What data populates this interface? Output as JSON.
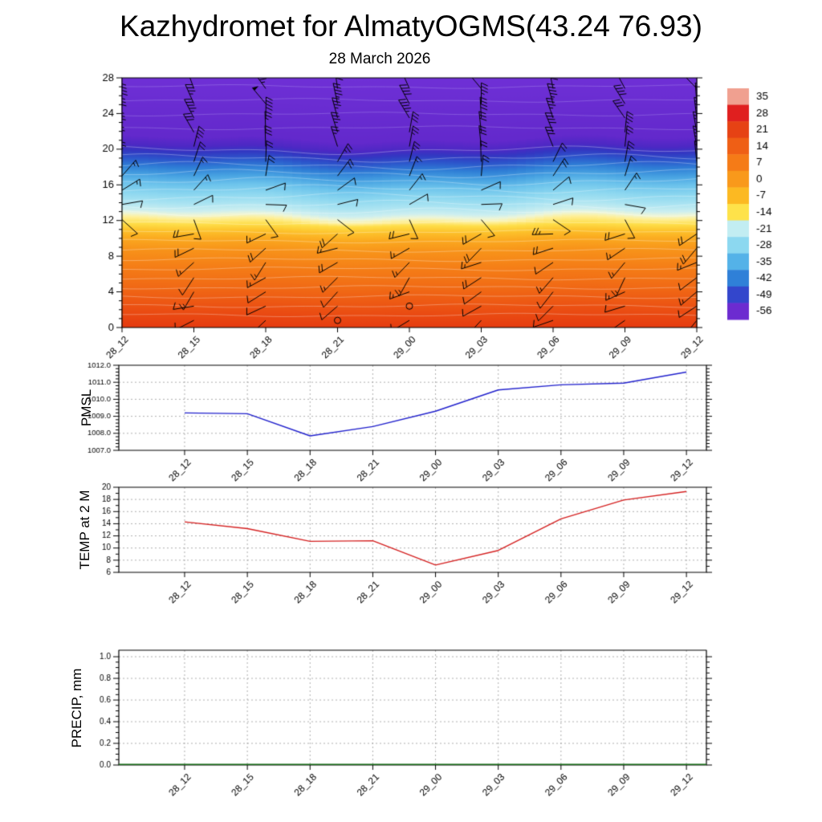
{
  "title": "Kazhydromet for AlmatyOGMS(43.24 76.93)",
  "subtitle": "28 March 2026",
  "station": {
    "name": "AlmatyOGMS",
    "lat": "43.24",
    "lon": "76.93"
  },
  "time_labels": [
    "28_12",
    "28_15",
    "28_18",
    "28_21",
    "29_00",
    "29_03",
    "29_06",
    "29_09",
    "29_12"
  ],
  "chart_data": [
    {
      "id": "temperature-height-cross-section",
      "type": "heatmap",
      "x_labels": [
        "28_12",
        "28_15",
        "28_18",
        "28_21",
        "29_00",
        "29_03",
        "29_06",
        "29_09",
        "29_12"
      ],
      "ylim": [
        0,
        28
      ],
      "ytick_labels": [
        "0",
        "4",
        "8",
        "12",
        "16",
        "20",
        "24",
        "28"
      ],
      "minor_step": 1,
      "colorbar_levels": [
        35,
        28,
        21,
        14,
        7,
        0,
        -7,
        -14,
        -21,
        -28,
        -35,
        -42,
        -49,
        -56
      ],
      "colorbar_colors": [
        "#f0a090",
        "#e01f1f",
        "#e64214",
        "#ef5f15",
        "#f57b17",
        "#f9991b",
        "#fcb922",
        "#fee24a",
        "#c2edf2",
        "#8cd8f0",
        "#54b2e8",
        "#2f80d8",
        "#3346cc",
        "#6c2bd0"
      ],
      "gradient_stops": [
        [
          0.0,
          "#e63c10"
        ],
        [
          0.08,
          "#ec5213"
        ],
        [
          0.16,
          "#f16a15"
        ],
        [
          0.24,
          "#f57e17"
        ],
        [
          0.31,
          "#f8941a"
        ],
        [
          0.355,
          "#fbab20"
        ],
        [
          0.385,
          "#fdc32c"
        ],
        [
          0.41,
          "#fede48"
        ],
        [
          0.43,
          "#fef09a"
        ],
        [
          0.445,
          "#eef6d8"
        ],
        [
          0.46,
          "#cdeff0"
        ],
        [
          0.49,
          "#abe4f2"
        ],
        [
          0.525,
          "#8ed8f0"
        ],
        [
          0.565,
          "#6cc3ec"
        ],
        [
          0.6,
          "#48a3e2"
        ],
        [
          0.635,
          "#2f7ed6"
        ],
        [
          0.665,
          "#2c57cc"
        ],
        [
          0.695,
          "#3337c2"
        ],
        [
          0.72,
          "#4d28c4"
        ],
        [
          0.755,
          "#6329cc"
        ],
        [
          1.0,
          "#6f30d6"
        ]
      ],
      "contour_line_color": "rgba(255,255,255,0.45)",
      "wind_barbs": {
        "levels": [
          0.8,
          2.4,
          4.0,
          5.6,
          7.3,
          8.9,
          10.5,
          12.1,
          13.8,
          15.4,
          17.0,
          18.6,
          20.3,
          21.9,
          23.5,
          25.1,
          26.8
        ],
        "dirs_deg_from": [
          235,
          245,
          230,
          225,
          232,
          240,
          248,
          140,
          80,
          50,
          25,
          10,
          358,
          350,
          345,
          340,
          336
        ],
        "speeds_kt": [
          8,
          10,
          12,
          15,
          15,
          18,
          20,
          10,
          10,
          12,
          18,
          22,
          28,
          32,
          38,
          42,
          48
        ],
        "calm_points": [
          [
            3,
            0
          ],
          [
            4,
            1
          ]
        ]
      }
    },
    {
      "id": "pmsl",
      "type": "line",
      "ylabel": "PMSL",
      "x_labels": [
        "28_12",
        "28_15",
        "28_18",
        "28_21",
        "29_00",
        "29_03",
        "29_06",
        "29_09",
        "29_12"
      ],
      "values": [
        1009.2,
        1009.15,
        1007.85,
        1008.4,
        1009.3,
        1010.55,
        1010.85,
        1010.95,
        1011.6
      ],
      "ylim": [
        1007.0,
        1012.0
      ],
      "ytick_labels": [
        "1007.0",
        "1008.0",
        "1009.0",
        "1010.0",
        "1011.0",
        "1012.0"
      ],
      "minor_step": 0.2,
      "line_color": "#2020cc"
    },
    {
      "id": "temp-at-2m",
      "type": "line",
      "ylabel": "TEMP at 2 M",
      "x_labels": [
        "28_12",
        "28_15",
        "28_18",
        "28_21",
        "29_00",
        "29_03",
        "29_06",
        "29_09",
        "29_12"
      ],
      "values": [
        14.3,
        13.2,
        11.1,
        11.2,
        7.2,
        9.6,
        14.8,
        17.9,
        19.3
      ],
      "ylim": [
        6,
        20
      ],
      "ytick_labels": [
        "6",
        "8",
        "10",
        "12",
        "14",
        "16",
        "18",
        "20"
      ],
      "minor_step": 1,
      "line_color": "#d42020"
    },
    {
      "id": "precip",
      "type": "line",
      "ylabel": "PRECIP, mm",
      "x_labels": [
        "28_12",
        "28_15",
        "28_18",
        "28_21",
        "29_00",
        "29_03",
        "29_06",
        "29_09",
        "29_12"
      ],
      "values": [
        0,
        0,
        0,
        0,
        0,
        0,
        0,
        0,
        0
      ],
      "ylim": [
        0.0,
        1.0
      ],
      "headroom": 0.06,
      "full_width_line": true,
      "ytick_labels": [
        "0.0",
        "0.2",
        "0.4",
        "0.6",
        "0.8",
        "1.0"
      ],
      "minor_step": 0.05,
      "line_color": "#156b15"
    }
  ]
}
